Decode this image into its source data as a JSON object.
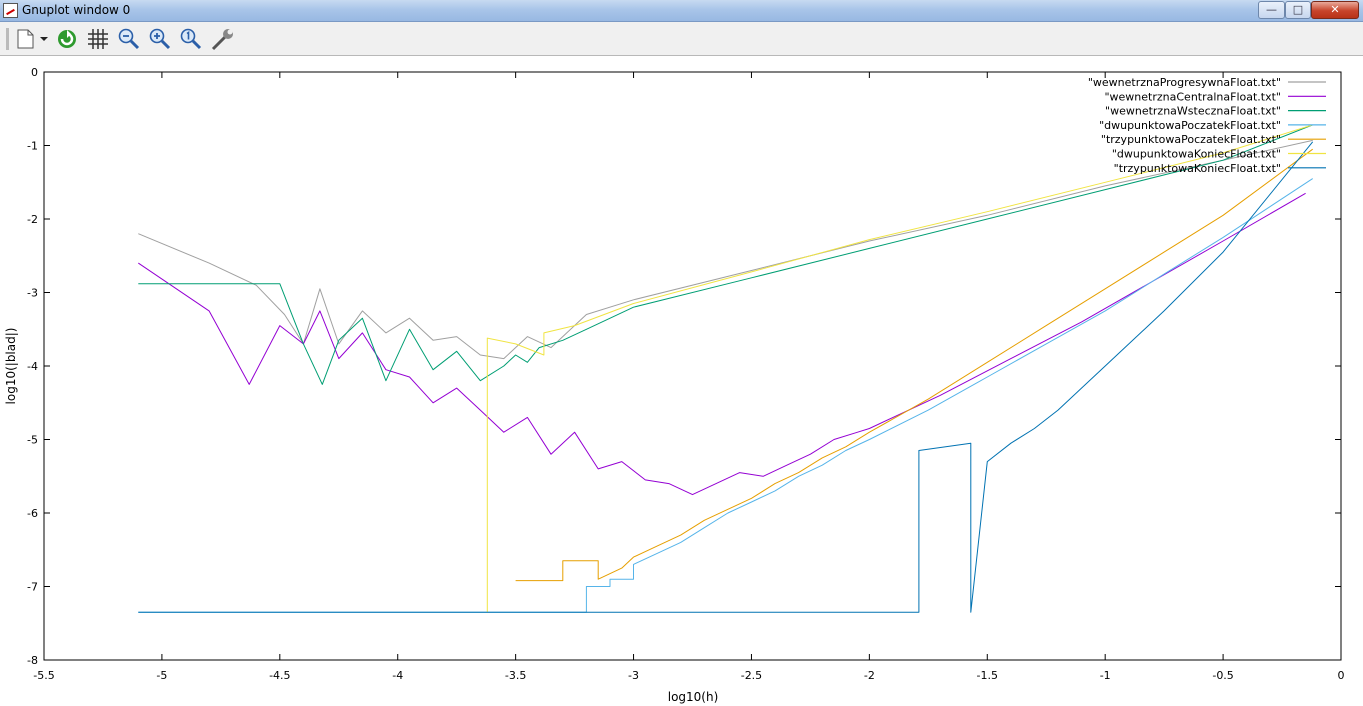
{
  "window": {
    "title": "Gnuplot window 0"
  },
  "toolbar": {
    "buttons": [
      {
        "name": "copy-clipboard-icon"
      },
      {
        "name": "replot-icon"
      },
      {
        "name": "grid-icon"
      },
      {
        "name": "zoom-previous-icon"
      },
      {
        "name": "zoom-next-icon"
      },
      {
        "name": "autoscale-icon"
      },
      {
        "name": "options-icon"
      }
    ]
  },
  "chart_data": {
    "type": "line",
    "xlabel": "log10(h)",
    "ylabel": "log10(|blad|)",
    "xlim": [
      -5.5,
      0
    ],
    "ylim": [
      -8,
      0
    ],
    "xticks": [
      -5.5,
      -5,
      -4.5,
      -4,
      -3.5,
      -3,
      -2.5,
      -2,
      -1.5,
      -1,
      -0.5,
      0
    ],
    "yticks": [
      0,
      -1,
      -2,
      -3,
      -4,
      -5,
      -6,
      -7,
      -8
    ],
    "legend_position": "top-right",
    "series": [
      {
        "name": "\"wewnetrznaProgresywnaFloat.txt\"",
        "color": "#a0a0a0",
        "x": [
          -5.1,
          -4.8,
          -4.6,
          -4.48,
          -4.4,
          -4.33,
          -4.25,
          -4.15,
          -4.05,
          -3.95,
          -3.85,
          -3.75,
          -3.65,
          -3.55,
          -3.45,
          -3.35,
          -3.2,
          -3.0,
          -2.5,
          -2.0,
          -1.5,
          -1.0,
          -0.5,
          -0.12
        ],
        "y": [
          -2.2,
          -2.6,
          -2.9,
          -3.3,
          -3.7,
          -2.95,
          -3.7,
          -3.25,
          -3.55,
          -3.35,
          -3.65,
          -3.6,
          -3.85,
          -3.9,
          -3.6,
          -3.75,
          -3.3,
          -3.1,
          -2.7,
          -2.3,
          -1.95,
          -1.55,
          -1.2,
          -0.93
        ]
      },
      {
        "name": "\"wewnetrznaCentralnaFloat.txt\"",
        "color": "#9400d3",
        "x": [
          -5.1,
          -4.8,
          -4.63,
          -4.5,
          -4.4,
          -4.33,
          -4.25,
          -4.15,
          -4.05,
          -3.95,
          -3.85,
          -3.75,
          -3.65,
          -3.55,
          -3.45,
          -3.35,
          -3.25,
          -3.15,
          -3.05,
          -2.95,
          -2.85,
          -2.75,
          -2.65,
          -2.55,
          -2.45,
          -2.35,
          -2.25,
          -2.15,
          -2.05,
          -2.0,
          -1.7,
          -1.4,
          -1.1,
          -0.8,
          -0.5,
          -0.15
        ],
        "y": [
          -2.6,
          -3.25,
          -4.25,
          -3.45,
          -3.7,
          -3.25,
          -3.9,
          -3.55,
          -4.05,
          -4.15,
          -4.5,
          -4.3,
          -4.6,
          -4.9,
          -4.7,
          -5.2,
          -4.9,
          -5.4,
          -5.3,
          -5.55,
          -5.6,
          -5.75,
          -5.6,
          -5.45,
          -5.5,
          -5.35,
          -5.2,
          -5.0,
          -4.9,
          -4.85,
          -4.4,
          -3.9,
          -3.4,
          -2.85,
          -2.3,
          -1.65
        ]
      },
      {
        "name": "\"wewnetrznaWstecznaFloat.txt\"",
        "color": "#009e73",
        "x": [
          -5.1,
          -4.5,
          -4.4,
          -4.32,
          -4.25,
          -4.15,
          -4.05,
          -3.95,
          -3.85,
          -3.75,
          -3.65,
          -3.55,
          -3.5,
          -3.45,
          -3.4,
          -3.3,
          -3.2,
          -3.0,
          -2.5,
          -2.0,
          -1.5,
          -1.0,
          -0.5,
          -0.12
        ],
        "y": [
          -2.88,
          -2.88,
          -3.7,
          -4.25,
          -3.65,
          -3.35,
          -4.2,
          -3.5,
          -4.05,
          -3.8,
          -4.2,
          -4.0,
          -3.85,
          -3.95,
          -3.75,
          -3.65,
          -3.5,
          -3.2,
          -2.8,
          -2.4,
          -2.0,
          -1.6,
          -1.2,
          -0.72
        ]
      },
      {
        "name": "\"dwupunktowaPoczatekFloat.txt\"",
        "color": "#56b4e9",
        "x": [
          -5.1,
          -3.2,
          -3.2,
          -3.1,
          -3.1,
          -3.0,
          -3.0,
          -2.9,
          -2.8,
          -2.7,
          -2.6,
          -2.5,
          -2.4,
          -2.3,
          -2.2,
          -2.1,
          -2.0,
          -1.75,
          -1.5,
          -1.25,
          -1.0,
          -0.75,
          -0.5,
          -0.12
        ],
        "y": [
          -7.35,
          -7.35,
          -7.0,
          -7.0,
          -6.9,
          -6.9,
          -6.7,
          -6.55,
          -6.4,
          -6.2,
          -6.0,
          -5.85,
          -5.7,
          -5.5,
          -5.35,
          -5.15,
          -5.0,
          -4.6,
          -4.15,
          -3.7,
          -3.25,
          -2.75,
          -2.25,
          -1.45
        ]
      },
      {
        "name": "\"trzypunktowaPoczatekFloat.txt\"",
        "color": "#e69f00",
        "x": [
          -3.5,
          -3.3,
          -3.3,
          -3.15,
          -3.15,
          -3.05,
          -3.0,
          -2.9,
          -2.8,
          -2.7,
          -2.6,
          -2.5,
          -2.4,
          -2.3,
          -2.2,
          -2.1,
          -2.0,
          -1.75,
          -1.5,
          -1.25,
          -1.0,
          -0.75,
          -0.5,
          -0.12
        ],
        "y": [
          -6.92,
          -6.92,
          -6.65,
          -6.65,
          -6.9,
          -6.75,
          -6.6,
          -6.45,
          -6.3,
          -6.1,
          -5.95,
          -5.8,
          -5.6,
          -5.45,
          -5.25,
          -5.1,
          -4.9,
          -4.45,
          -3.95,
          -3.45,
          -2.95,
          -2.45,
          -1.95,
          -1.05
        ]
      },
      {
        "name": "\"dwupunktowaKoniecFloat.txt\"",
        "color": "#f0e442",
        "x": [
          -3.62,
          -3.62,
          -3.5,
          -3.38,
          -3.38,
          -3.25,
          -3.0,
          -2.5,
          -2.0,
          -1.5,
          -1.0,
          -0.5,
          -0.12
        ],
        "y": [
          -7.35,
          -3.62,
          -3.7,
          -3.85,
          -3.55,
          -3.45,
          -3.15,
          -2.72,
          -2.28,
          -1.9,
          -1.5,
          -1.1,
          -0.72
        ]
      },
      {
        "name": "\"trzypunktowaKoniecFloat.txt\"",
        "color": "#0072b2",
        "x": [
          -5.1,
          -1.79,
          -1.79,
          -1.57,
          -1.57,
          -1.5,
          -1.4,
          -1.3,
          -1.2,
          -1.0,
          -0.75,
          -0.5,
          -0.12
        ],
        "y": [
          -7.35,
          -7.35,
          -5.15,
          -5.05,
          -7.35,
          -5.3,
          -5.05,
          -4.85,
          -4.6,
          -4.0,
          -3.25,
          -2.45,
          -0.95
        ]
      }
    ]
  }
}
